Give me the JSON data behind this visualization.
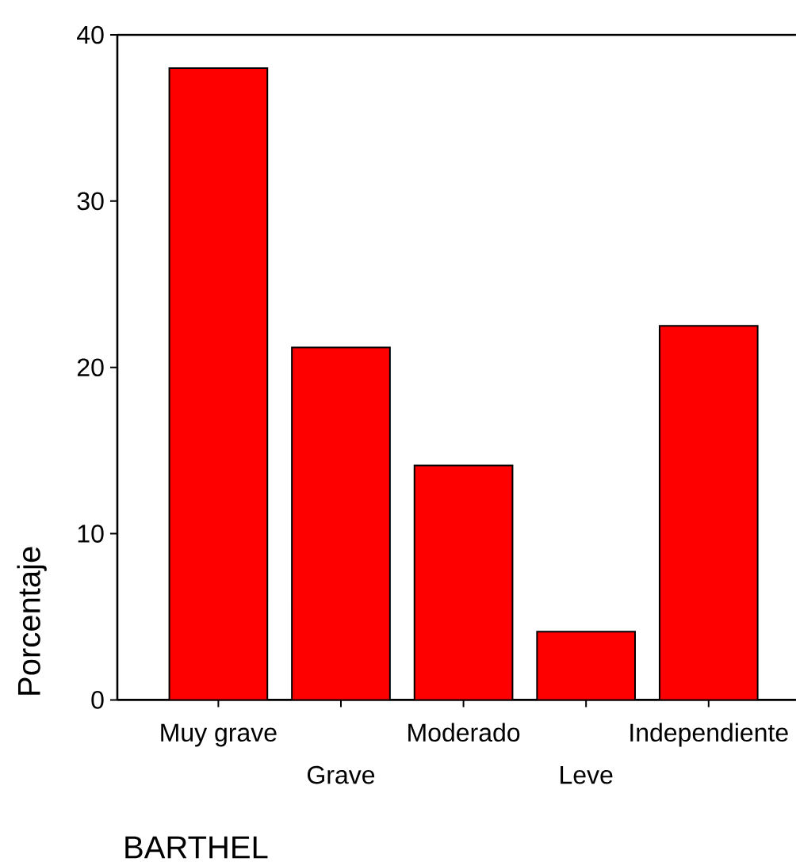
{
  "chart_data": {
    "type": "bar",
    "categories": [
      "Muy grave",
      "Grave",
      "Moderado",
      "Leve",
      "Independiente"
    ],
    "values": [
      38.0,
      21.2,
      14.1,
      4.1,
      22.5
    ],
    "color": "#ff0000",
    "xlabel": "BARTHEL",
    "ylabel": "Porcentaje",
    "ylim": [
      0,
      40
    ],
    "yticks": [
      0,
      10,
      20,
      30,
      40
    ]
  }
}
